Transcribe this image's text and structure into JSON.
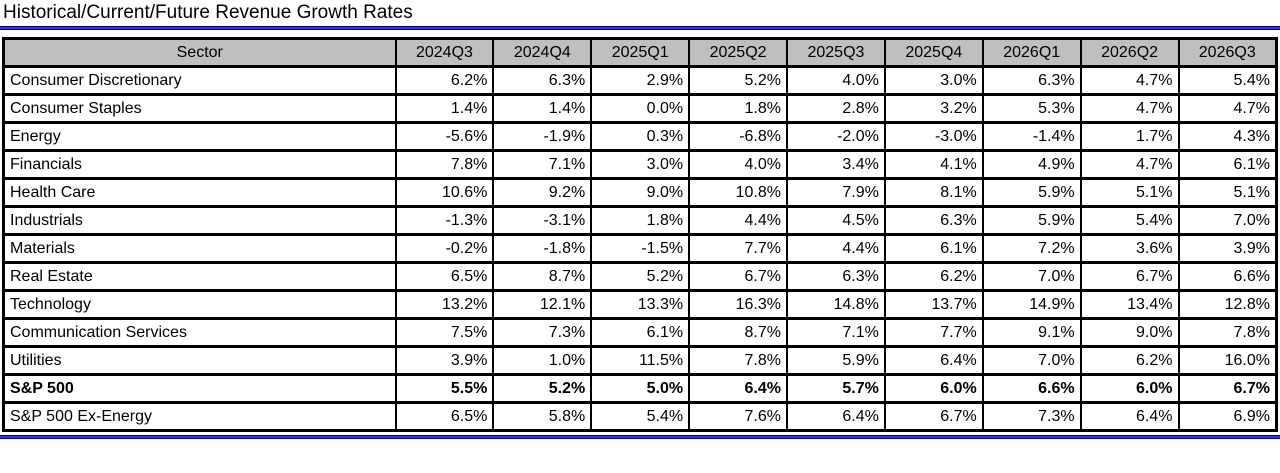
{
  "title": "Historical/Current/Future Revenue Growth Rates",
  "colors": {
    "header_bg": "#bfbfbf",
    "table_border": "#000000",
    "accent_blue": "#3434e0",
    "accent_blue_dark": "#000080"
  },
  "table": {
    "sector_header": "Sector",
    "quarter_headers": [
      "2024Q3",
      "2024Q4",
      "2025Q1",
      "2025Q2",
      "2025Q3",
      "2025Q4",
      "2026Q1",
      "2026Q2",
      "2026Q3"
    ],
    "rows": [
      {
        "sector": "Consumer Discretionary",
        "bold": false,
        "values": [
          "6.2%",
          "6.3%",
          "2.9%",
          "5.2%",
          "4.0%",
          "3.0%",
          "6.3%",
          "4.7%",
          "5.4%"
        ]
      },
      {
        "sector": "Consumer Staples",
        "bold": false,
        "values": [
          "1.4%",
          "1.4%",
          "0.0%",
          "1.8%",
          "2.8%",
          "3.2%",
          "5.3%",
          "4.7%",
          "4.7%"
        ]
      },
      {
        "sector": "Energy",
        "bold": false,
        "values": [
          "-5.6%",
          "-1.9%",
          "0.3%",
          "-6.8%",
          "-2.0%",
          "-3.0%",
          "-1.4%",
          "1.7%",
          "4.3%"
        ]
      },
      {
        "sector": "Financials",
        "bold": false,
        "values": [
          "7.8%",
          "7.1%",
          "3.0%",
          "4.0%",
          "3.4%",
          "4.1%",
          "4.9%",
          "4.7%",
          "6.1%"
        ]
      },
      {
        "sector": "Health Care",
        "bold": false,
        "values": [
          "10.6%",
          "9.2%",
          "9.0%",
          "10.8%",
          "7.9%",
          "8.1%",
          "5.9%",
          "5.1%",
          "5.1%"
        ]
      },
      {
        "sector": "Industrials",
        "bold": false,
        "values": [
          "-1.3%",
          "-3.1%",
          "1.8%",
          "4.4%",
          "4.5%",
          "6.3%",
          "5.9%",
          "5.4%",
          "7.0%"
        ]
      },
      {
        "sector": "Materials",
        "bold": false,
        "values": [
          "-0.2%",
          "-1.8%",
          "-1.5%",
          "7.7%",
          "4.4%",
          "6.1%",
          "7.2%",
          "3.6%",
          "3.9%"
        ]
      },
      {
        "sector": "Real Estate",
        "bold": false,
        "values": [
          "6.5%",
          "8.7%",
          "5.2%",
          "6.7%",
          "6.3%",
          "6.2%",
          "7.0%",
          "6.7%",
          "6.6%"
        ]
      },
      {
        "sector": "Technology",
        "bold": false,
        "values": [
          "13.2%",
          "12.1%",
          "13.3%",
          "16.3%",
          "14.8%",
          "13.7%",
          "14.9%",
          "13.4%",
          "12.8%"
        ]
      },
      {
        "sector": "Communication Services",
        "bold": false,
        "values": [
          "7.5%",
          "7.3%",
          "6.1%",
          "8.7%",
          "7.1%",
          "7.7%",
          "9.1%",
          "9.0%",
          "7.8%"
        ]
      },
      {
        "sector": "Utilities",
        "bold": false,
        "values": [
          "3.9%",
          "1.0%",
          "11.5%",
          "7.8%",
          "5.9%",
          "6.4%",
          "7.0%",
          "6.2%",
          "16.0%"
        ]
      },
      {
        "sector": "S&P 500",
        "bold": true,
        "values": [
          "5.5%",
          "5.2%",
          "5.0%",
          "6.4%",
          "5.7%",
          "6.0%",
          "6.6%",
          "6.0%",
          "6.7%"
        ]
      },
      {
        "sector": "S&P 500 Ex-Energy",
        "bold": false,
        "values": [
          "6.5%",
          "5.8%",
          "5.4%",
          "7.6%",
          "6.4%",
          "6.7%",
          "7.3%",
          "6.4%",
          "6.9%"
        ]
      }
    ]
  },
  "chart_data": {
    "type": "table",
    "title": "Historical/Current/Future Revenue Growth Rates",
    "categories": [
      "2024Q3",
      "2024Q4",
      "2025Q1",
      "2025Q2",
      "2025Q3",
      "2025Q4",
      "2026Q1",
      "2026Q2",
      "2026Q3"
    ],
    "value_unit": "percent",
    "series": [
      {
        "name": "Consumer Discretionary",
        "values": [
          6.2,
          6.3,
          2.9,
          5.2,
          4.0,
          3.0,
          6.3,
          4.7,
          5.4
        ]
      },
      {
        "name": "Consumer Staples",
        "values": [
          1.4,
          1.4,
          0.0,
          1.8,
          2.8,
          3.2,
          5.3,
          4.7,
          4.7
        ]
      },
      {
        "name": "Energy",
        "values": [
          -5.6,
          -1.9,
          0.3,
          -6.8,
          -2.0,
          -3.0,
          -1.4,
          1.7,
          4.3
        ]
      },
      {
        "name": "Financials",
        "values": [
          7.8,
          7.1,
          3.0,
          4.0,
          3.4,
          4.1,
          4.9,
          4.7,
          6.1
        ]
      },
      {
        "name": "Health Care",
        "values": [
          10.6,
          9.2,
          9.0,
          10.8,
          7.9,
          8.1,
          5.9,
          5.1,
          5.1
        ]
      },
      {
        "name": "Industrials",
        "values": [
          -1.3,
          -3.1,
          1.8,
          4.4,
          4.5,
          6.3,
          5.9,
          5.4,
          7.0
        ]
      },
      {
        "name": "Materials",
        "values": [
          -0.2,
          -1.8,
          -1.5,
          7.7,
          4.4,
          6.1,
          7.2,
          3.6,
          3.9
        ]
      },
      {
        "name": "Real Estate",
        "values": [
          6.5,
          8.7,
          5.2,
          6.7,
          6.3,
          6.2,
          7.0,
          6.7,
          6.6
        ]
      },
      {
        "name": "Technology",
        "values": [
          13.2,
          12.1,
          13.3,
          16.3,
          14.8,
          13.7,
          14.9,
          13.4,
          12.8
        ]
      },
      {
        "name": "Communication Services",
        "values": [
          7.5,
          7.3,
          6.1,
          8.7,
          7.1,
          7.7,
          9.1,
          9.0,
          7.8
        ]
      },
      {
        "name": "Utilities",
        "values": [
          3.9,
          1.0,
          11.5,
          7.8,
          5.9,
          6.4,
          7.0,
          6.2,
          16.0
        ]
      },
      {
        "name": "S&P 500",
        "values": [
          5.5,
          5.2,
          5.0,
          6.4,
          5.7,
          6.0,
          6.6,
          6.0,
          6.7
        ]
      },
      {
        "name": "S&P 500 Ex-Energy",
        "values": [
          6.5,
          5.8,
          5.4,
          7.6,
          6.4,
          6.7,
          7.3,
          6.4,
          6.9
        ]
      }
    ]
  }
}
